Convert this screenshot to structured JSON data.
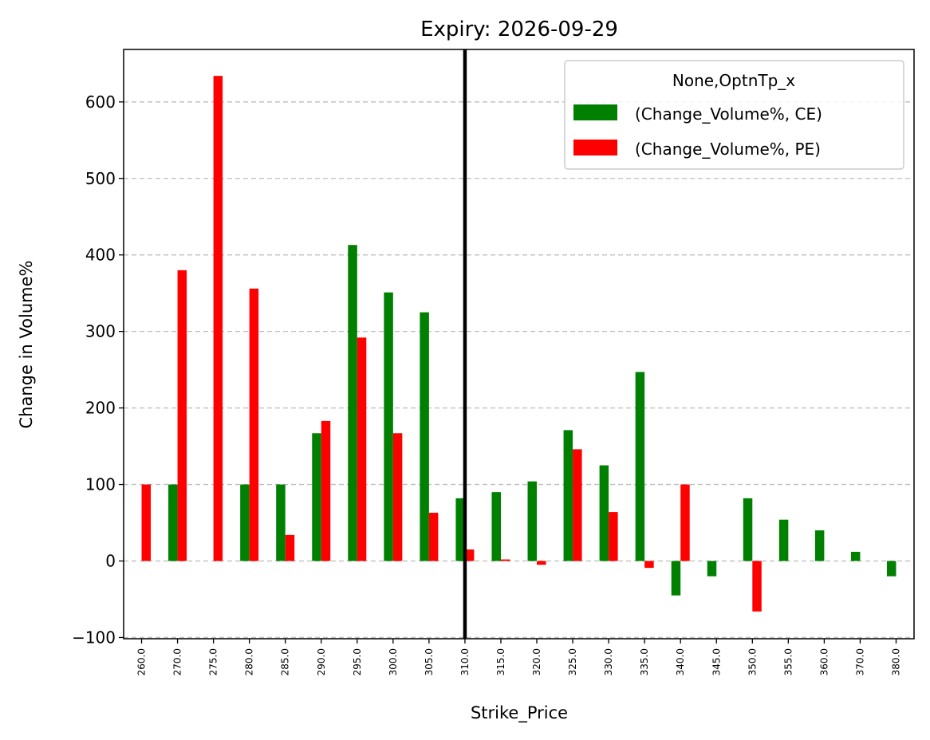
{
  "chart_data": {
    "type": "bar",
    "title": "Expiry: 2026-09-29",
    "xlabel": "Strike_Price",
    "ylabel": "Change in Volume%",
    "ylim": [
      -100,
      670
    ],
    "yticks": [
      "−100",
      "0",
      "100",
      "200",
      "300",
      "400",
      "500",
      "600"
    ],
    "ytick_values": [
      -100,
      0,
      100,
      200,
      300,
      400,
      500,
      600
    ],
    "grid": "horizontal dashed",
    "categories": [
      "260.0",
      "270.0",
      "275.0",
      "280.0",
      "285.0",
      "290.0",
      "295.0",
      "300.0",
      "305.0",
      "310.0",
      "315.0",
      "320.0",
      "325.0",
      "330.0",
      "335.0",
      "340.0",
      "345.0",
      "350.0",
      "355.0",
      "360.0",
      "370.0",
      "380.0"
    ],
    "series": [
      {
        "name": "(Change_Volume%, CE)",
        "color": "#008000",
        "values": [
          null,
          100,
          null,
          100,
          100,
          167,
          413,
          351,
          325,
          82,
          90,
          104,
          171,
          125,
          247,
          -45,
          -20,
          82,
          54,
          40,
          12,
          -20
        ]
      },
      {
        "name": "(Change_Volume%, PE)",
        "color": "#ff0000",
        "values": [
          100,
          380,
          634,
          356,
          34,
          183,
          292,
          167,
          63,
          15,
          2,
          -5,
          146,
          64,
          -9,
          100,
          null,
          -66,
          null,
          null,
          null,
          null
        ]
      }
    ],
    "vline": {
      "category": "310.0",
      "color": "#000000"
    },
    "legend": {
      "title": "None,OptnTp_x",
      "placement": "top-right"
    }
  }
}
